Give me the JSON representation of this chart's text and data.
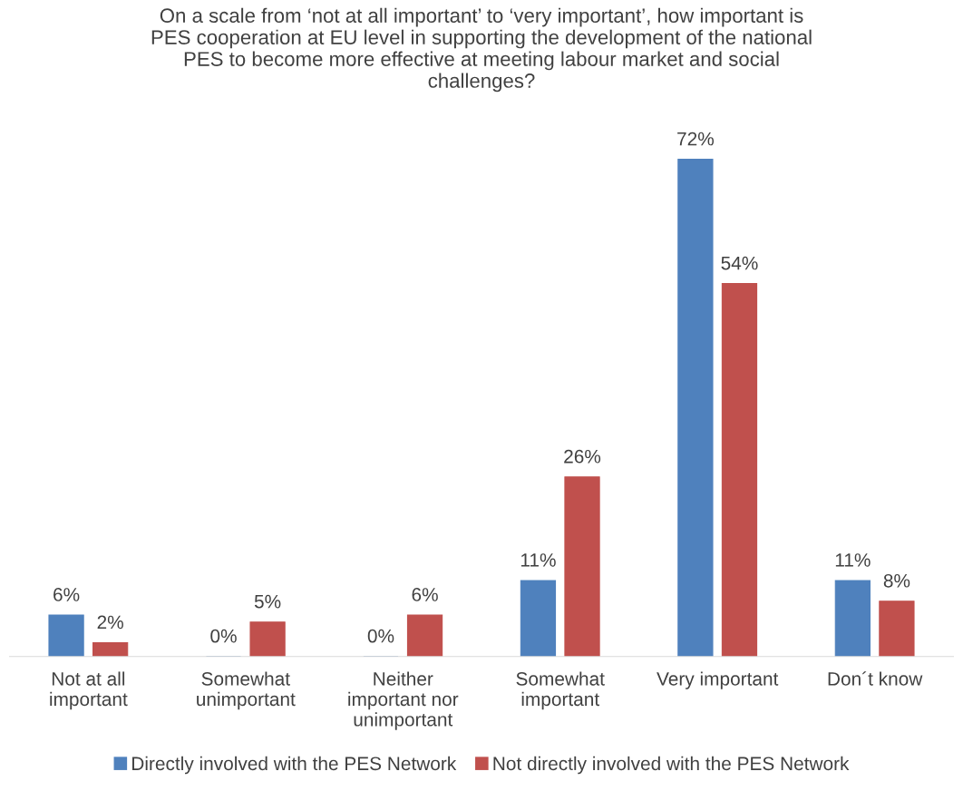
{
  "chart_data": {
    "type": "bar",
    "title": "On a scale from ‘not at all important’ to ‘very important’, how important is\nPES cooperation at EU level in supporting the development of the national\nPES to become more effective at meeting labour market and social\nchallenges?",
    "categories": [
      "Not at all\nimportant",
      "Somewhat\nunimportant",
      "Neither\nimportant nor\nunimportant",
      "Somewhat\nimportant",
      "Very important",
      "Don´t know"
    ],
    "series": [
      {
        "name": "Directly involved with the PES Network",
        "color": "#4f81bd",
        "values": [
          6,
          0,
          0,
          11,
          72,
          11
        ],
        "value_labels": [
          "6%",
          "0%",
          "0%",
          "11%",
          "72%",
          "11%"
        ]
      },
      {
        "name": "Not directly involved with the PES Network",
        "color": "#c0504d",
        "values": [
          2,
          5,
          6,
          26,
          54,
          8
        ],
        "value_labels": [
          "2%",
          "5%",
          "6%",
          "26%",
          "54%",
          "8%"
        ]
      }
    ],
    "legend": "bottom",
    "grid": false
  }
}
